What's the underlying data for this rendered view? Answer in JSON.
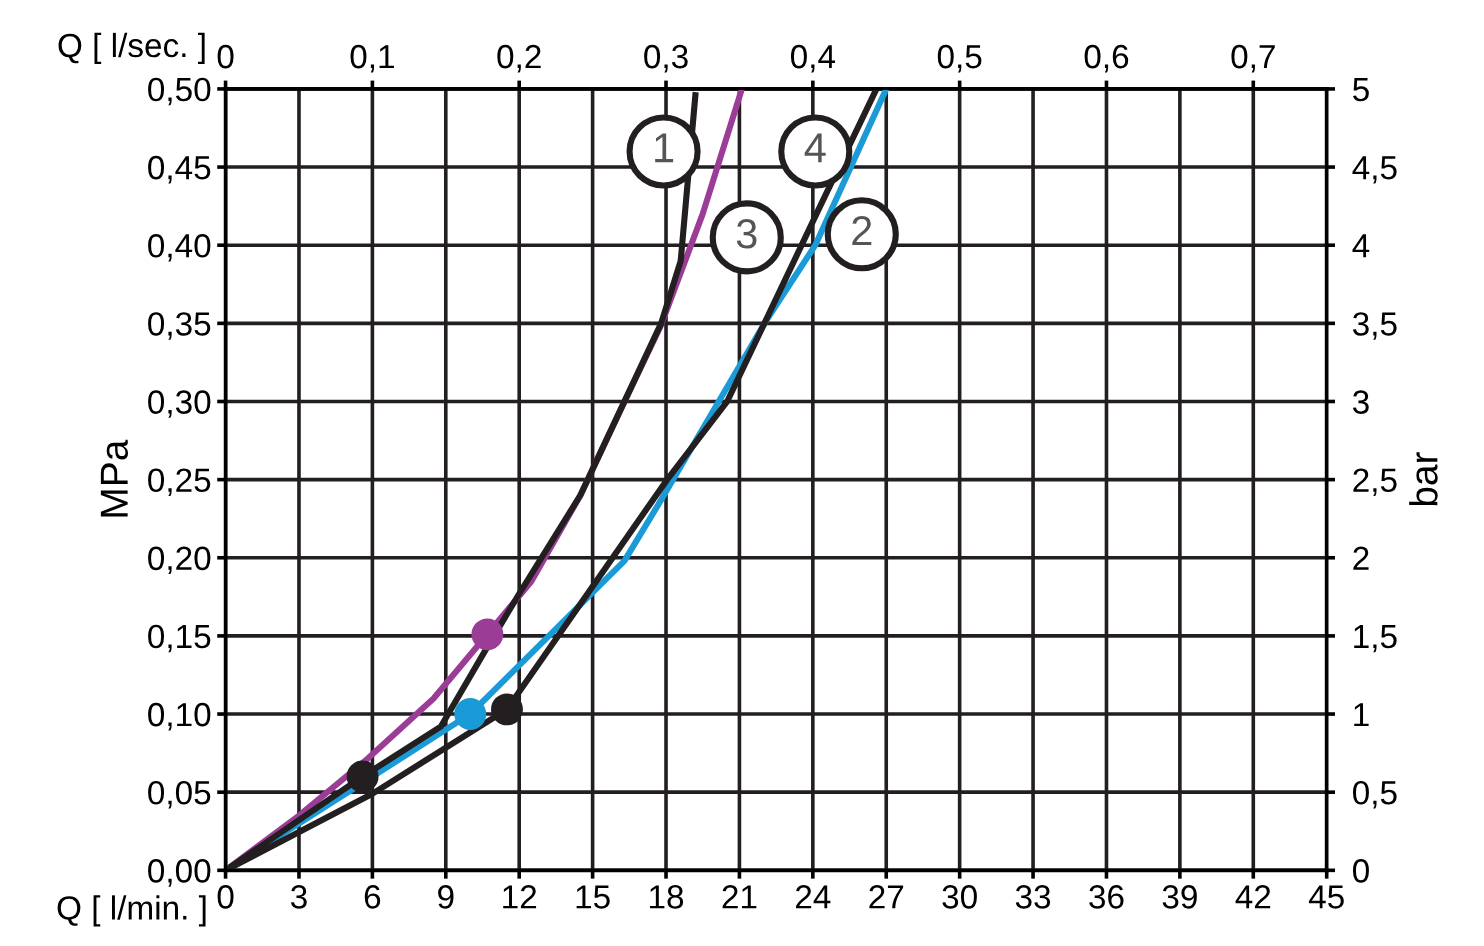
{
  "chart_data": {
    "type": "line",
    "xlabel": "Q [ l/min. ]",
    "ylabel": "MPa",
    "y2label": "bar",
    "x2label": "Q [ l/sec. ]",
    "xlim": [
      0,
      45
    ],
    "xticks": [
      0,
      3,
      6,
      9,
      12,
      15,
      18,
      21,
      24,
      27,
      30,
      33,
      36,
      39,
      42,
      45
    ],
    "ylim": [
      0,
      0.5
    ],
    "yticks": [
      {
        "value": 0,
        "label": "0,00"
      },
      {
        "value": 0.05,
        "label": "0,05"
      },
      {
        "value": 0.1,
        "label": "0,10"
      },
      {
        "value": 0.15,
        "label": "0,15"
      },
      {
        "value": 0.2,
        "label": "0,20"
      },
      {
        "value": 0.25,
        "label": "0,25"
      },
      {
        "value": 0.3,
        "label": "0,30"
      },
      {
        "value": 0.35,
        "label": "0,35"
      },
      {
        "value": 0.4,
        "label": "0,40"
      },
      {
        "value": 0.45,
        "label": "0,45"
      },
      {
        "value": 0.5,
        "label": "0,50"
      }
    ],
    "y2lim": [
      0,
      5
    ],
    "y2ticks": [
      0,
      {
        "value": 0.5,
        "label": "0,5"
      },
      1,
      {
        "value": 1.5,
        "label": "1,5"
      },
      2,
      {
        "value": 2.5,
        "label": "2,5"
      },
      3,
      {
        "value": 3.5,
        "label": "3,5"
      },
      4,
      {
        "value": 4.5,
        "label": "4,5"
      },
      5
    ],
    "x2lim": [
      0,
      0.75
    ],
    "x2ticks": [
      0,
      {
        "value": 0.1,
        "label": "0,1"
      },
      {
        "value": 0.2,
        "label": "0,2"
      },
      {
        "value": 0.3,
        "label": "0,3"
      },
      {
        "value": 0.4,
        "label": "0,4"
      },
      {
        "value": 0.5,
        "label": "0,5"
      },
      {
        "value": 0.6,
        "label": "0,6"
      },
      {
        "value": 0.7,
        "label": "0,7"
      }
    ],
    "grid": true,
    "legend": false,
    "line_style": "solid",
    "series": [
      {
        "color": "#9b3d96",
        "x": [
          0,
          3,
          5.7,
          8.5,
          10.7,
          12.5,
          14.5,
          16,
          17.8,
          19.5,
          21.1
        ],
        "values": [
          0,
          0.035,
          0.07,
          0.11,
          0.151,
          0.185,
          0.24,
          0.29,
          0.349,
          0.42,
          0.5
        ]
      },
      {
        "color": "#1a9ad6",
        "x": [
          0,
          5.5,
          10,
          16.3,
          17.8,
          22.1,
          24.1,
          27
        ],
        "values": [
          0,
          0.055,
          0.1,
          0.198,
          0.237,
          0.352,
          0.4,
          0.5
        ]
      },
      {
        "color": "#231f20",
        "x": [
          0,
          5.6,
          8.8,
          10.7,
          12,
          14.5,
          17.8,
          18.6,
          19.2
        ],
        "values": [
          0,
          0.06,
          0.092,
          0.143,
          0.177,
          0.24,
          0.35,
          0.39,
          0.496
        ]
      },
      {
        "color": "#231f20",
        "x": [
          0,
          6,
          11.5,
          18,
          20.5,
          24.3,
          26.6
        ],
        "values": [
          0,
          0.049,
          0.103,
          0.249,
          0.3,
          0.425,
          0.5
        ]
      },
      {
        "type": "scatter",
        "marker": "circle",
        "color": "#9b3d96",
        "x": [
          10.7
        ],
        "values": [
          0.151
        ]
      },
      {
        "type": "scatter",
        "marker": "circle",
        "color": "#1a9ad6",
        "x": [
          10
        ],
        "values": [
          0.1
        ]
      },
      {
        "type": "scatter",
        "marker": "circle",
        "color": "#231f20",
        "x": [
          5.6,
          11.5
        ],
        "values": [
          0.06,
          0.103
        ]
      }
    ],
    "annotations": [
      {
        "text": "1",
        "x": 17.9,
        "y": 0.46
      },
      {
        "text": "3",
        "x": 21.3,
        "y": 0.405
      },
      {
        "text": "4",
        "x": 24.1,
        "y": 0.46
      },
      {
        "text": "2",
        "x": 26,
        "y": 0.407
      }
    ]
  }
}
